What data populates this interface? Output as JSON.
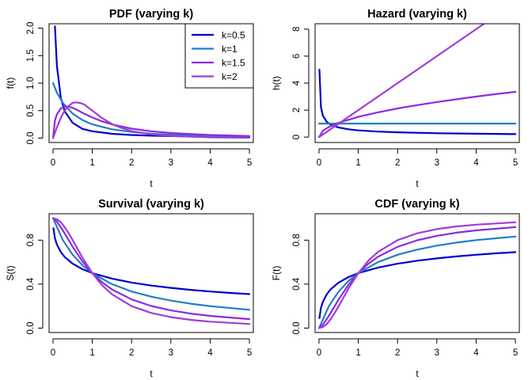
{
  "chart_data": [
    {
      "type": "line",
      "title": "PDF (varying k)",
      "xlabel": "t",
      "ylabel": "f(t)",
      "xlim": [
        -0.1,
        5.1
      ],
      "ylim": [
        -0.08,
        2.08
      ],
      "xticks": [
        0,
        1,
        2,
        3,
        4,
        5
      ],
      "yticks": [
        0.0,
        0.5,
        1.0,
        1.5,
        2.0
      ],
      "ytick_labels": [
        "0.0",
        "0.5",
        "1.0",
        "1.5",
        "2.0"
      ],
      "legend": {
        "position": "top-right",
        "entries": [
          "k=0.5",
          "k=1",
          "k=1.5",
          "k=2"
        ]
      },
      "series": [
        {
          "name": "k=0.5",
          "color": "#0000CD",
          "x": [
            0.05,
            0.1,
            0.2,
            0.3,
            0.5,
            0.75,
            1,
            1.5,
            2,
            2.5,
            3,
            3.5,
            4,
            4.5,
            5
          ],
          "values": [
            2.032,
            1.31,
            0.725,
            0.488,
            0.277,
            0.168,
            0.125,
            0.079,
            0.057,
            0.044,
            0.036,
            0.03,
            0.026,
            0.023,
            0.021
          ]
        },
        {
          "name": "k=1",
          "color": "#1E7FC2",
          "x": [
            0,
            0.1,
            0.25,
            0.5,
            0.75,
            1,
            1.5,
            2,
            2.5,
            3,
            3.5,
            4,
            4.5,
            5
          ],
          "values": [
            1.0,
            0.826,
            0.64,
            0.444,
            0.327,
            0.25,
            0.16,
            0.111,
            0.082,
            0.063,
            0.049,
            0.04,
            0.033,
            0.028
          ]
        },
        {
          "name": "k=1.5",
          "color": "#8A2BE2",
          "x": [
            0,
            0.05,
            0.1,
            0.2,
            0.3,
            0.4,
            0.5,
            0.6,
            0.8,
            1,
            1.25,
            1.5,
            2,
            2.5,
            3,
            4,
            5
          ],
          "values": [
            0,
            0.321,
            0.434,
            0.541,
            0.575,
            0.572,
            0.55,
            0.517,
            0.441,
            0.375,
            0.305,
            0.25,
            0.172,
            0.124,
            0.093,
            0.057,
            0.038
          ]
        },
        {
          "name": "k=2",
          "color": "#A33BD6",
          "x": [
            0,
            0.1,
            0.2,
            0.3,
            0.4,
            0.5,
            0.577,
            0.7,
            0.8,
            1,
            1.25,
            1.5,
            1.75,
            2,
            2.5,
            3,
            4,
            5
          ],
          "values": [
            0,
            0.196,
            0.37,
            0.504,
            0.587,
            0.64,
            0.65,
            0.638,
            0.61,
            0.5,
            0.364,
            0.256,
            0.183,
            0.128,
            0.069,
            0.04,
            0.014,
            0.007
          ]
        }
      ]
    },
    {
      "type": "line",
      "title": "Hazard (varying k)",
      "xlabel": "t",
      "ylabel": "h(t)",
      "xlim": [
        -0.1,
        5.1
      ],
      "ylim": [
        -0.4,
        8.4
      ],
      "xticks": [
        0,
        1,
        2,
        3,
        4,
        5
      ],
      "yticks": [
        0,
        2,
        4,
        6,
        8
      ],
      "ytick_labels": [
        "0",
        "2",
        "4",
        "6",
        "8"
      ],
      "series": [
        {
          "name": "k=0.5",
          "color": "#0000CD",
          "x": [
            0.01,
            0.05,
            0.1,
            0.2,
            0.3,
            0.5,
            0.75,
            1,
            1.5,
            2,
            3,
            4,
            5
          ],
          "values": [
            5.0,
            2.236,
            1.581,
            1.118,
            0.913,
            0.707,
            0.577,
            0.5,
            0.408,
            0.354,
            0.289,
            0.25,
            0.224
          ]
        },
        {
          "name": "k=1",
          "color": "#1E7FC2",
          "x": [
            0,
            5
          ],
          "values": [
            1,
            1
          ]
        },
        {
          "name": "k=1.5",
          "color": "#8A2BE2",
          "x": [
            0,
            0.1,
            0.25,
            0.5,
            1,
            1.5,
            2,
            2.5,
            3,
            3.5,
            4,
            4.5,
            5
          ],
          "values": [
            0,
            0.474,
            0.75,
            1.061,
            1.5,
            1.837,
            2.121,
            2.372,
            2.598,
            2.806,
            3.0,
            3.182,
            3.354
          ]
        },
        {
          "name": "k=2",
          "color": "#A33BD6",
          "x": [
            0,
            4.3
          ],
          "values": [
            0,
            8.6
          ]
        }
      ]
    },
    {
      "type": "line",
      "title": "Survival (varying k)",
      "xlabel": "t",
      "ylabel": "S(t)",
      "xlim": [
        -0.1,
        5.1
      ],
      "ylim": [
        -0.04,
        1.04
      ],
      "xticks": [
        0,
        1,
        2,
        3,
        4,
        5
      ],
      "yticks": [
        0.0,
        0.4,
        0.8
      ],
      "ytick_labels": [
        "0.0",
        "0.4",
        "0.8"
      ],
      "series": [
        {
          "name": "k=0.5",
          "color": "#0000CD",
          "x": [
            0.01,
            0.05,
            0.1,
            0.2,
            0.3,
            0.5,
            0.75,
            1,
            1.5,
            2,
            2.5,
            3,
            3.5,
            4,
            4.5,
            5
          ],
          "values": [
            0.909,
            0.817,
            0.76,
            0.691,
            0.646,
            0.586,
            0.536,
            0.5,
            0.45,
            0.414,
            0.387,
            0.366,
            0.348,
            0.333,
            0.32,
            0.309
          ]
        },
        {
          "name": "k=1",
          "color": "#1E7FC2",
          "x": [
            0,
            0.25,
            0.5,
            0.75,
            1,
            1.5,
            2,
            2.5,
            3,
            3.5,
            4,
            5
          ],
          "values": [
            1,
            0.8,
            0.667,
            0.571,
            0.5,
            0.4,
            0.333,
            0.286,
            0.25,
            0.222,
            0.2,
            0.167
          ]
        },
        {
          "name": "k=1.5",
          "color": "#8A2BE2",
          "x": [
            0,
            0.1,
            0.25,
            0.5,
            0.75,
            1,
            1.25,
            1.5,
            2,
            2.5,
            3,
            3.5,
            4,
            5
          ],
          "values": [
            1,
            0.969,
            0.889,
            0.739,
            0.606,
            0.5,
            0.417,
            0.352,
            0.261,
            0.201,
            0.161,
            0.132,
            0.111,
            0.082
          ]
        },
        {
          "name": "k=2",
          "color": "#A33BD6",
          "x": [
            0,
            0.1,
            0.2,
            0.3,
            0.4,
            0.5,
            0.75,
            1,
            1.25,
            1.5,
            2,
            2.5,
            3,
            3.5,
            4,
            5
          ],
          "values": [
            1,
            0.99,
            0.962,
            0.917,
            0.862,
            0.8,
            0.64,
            0.5,
            0.39,
            0.308,
            0.2,
            0.138,
            0.1,
            0.075,
            0.059,
            0.038
          ]
        }
      ]
    },
    {
      "type": "line",
      "title": "CDF (varying k)",
      "xlabel": "t",
      "ylabel": "F(t)",
      "xlim": [
        -0.1,
        5.1
      ],
      "ylim": [
        -0.04,
        1.04
      ],
      "xticks": [
        0,
        1,
        2,
        3,
        4,
        5
      ],
      "yticks": [
        0.0,
        0.4,
        0.8
      ],
      "ytick_labels": [
        "0.0",
        "0.4",
        "0.8"
      ],
      "series": [
        {
          "name": "k=0.5",
          "color": "#0000CD",
          "x": [
            0.01,
            0.05,
            0.1,
            0.2,
            0.3,
            0.5,
            0.75,
            1,
            1.5,
            2,
            2.5,
            3,
            3.5,
            4,
            4.5,
            5
          ],
          "values": [
            0.091,
            0.183,
            0.24,
            0.309,
            0.354,
            0.414,
            0.464,
            0.5,
            0.55,
            0.586,
            0.613,
            0.634,
            0.652,
            0.667,
            0.68,
            0.691
          ]
        },
        {
          "name": "k=1",
          "color": "#1E7FC2",
          "x": [
            0,
            0.25,
            0.5,
            0.75,
            1,
            1.5,
            2,
            2.5,
            3,
            3.5,
            4,
            5
          ],
          "values": [
            0,
            0.2,
            0.333,
            0.429,
            0.5,
            0.6,
            0.667,
            0.714,
            0.75,
            0.778,
            0.8,
            0.833
          ]
        },
        {
          "name": "k=1.5",
          "color": "#8A2BE2",
          "x": [
            0,
            0.1,
            0.25,
            0.5,
            0.75,
            1,
            1.25,
            1.5,
            2,
            2.5,
            3,
            3.5,
            4,
            5
          ],
          "values": [
            0,
            0.031,
            0.111,
            0.261,
            0.394,
            0.5,
            0.583,
            0.648,
            0.739,
            0.799,
            0.839,
            0.868,
            0.889,
            0.918
          ]
        },
        {
          "name": "k=2",
          "color": "#A33BD6",
          "x": [
            0,
            0.1,
            0.2,
            0.3,
            0.4,
            0.5,
            0.75,
            1,
            1.25,
            1.5,
            2,
            2.5,
            3,
            3.5,
            4,
            5
          ],
          "values": [
            0,
            0.01,
            0.038,
            0.083,
            0.138,
            0.2,
            0.36,
            0.5,
            0.61,
            0.692,
            0.8,
            0.862,
            0.9,
            0.925,
            0.941,
            0.962
          ]
        }
      ]
    }
  ]
}
